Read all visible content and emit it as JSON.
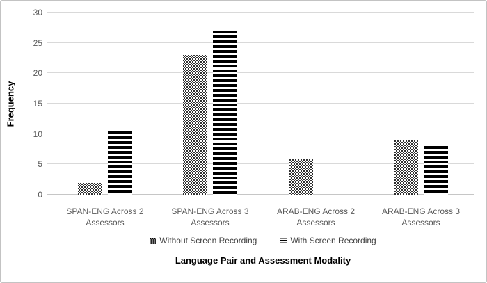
{
  "window": {
    "background": "#ffffff",
    "border_color": "#c3c3c3"
  },
  "chart_data": {
    "type": "bar",
    "title": "",
    "xlabel": "Language Pair and Assessment Modality",
    "ylabel": "Frequency",
    "ylim": [
      0,
      30
    ],
    "ytick_step": 5,
    "yticks": [
      0,
      5,
      10,
      15,
      20,
      25,
      30
    ],
    "grid": true,
    "legend_position": "bottom",
    "categories": [
      "SPAN-ENG Across 2 Assessors",
      "SPAN-ENG Across 3 Assessors",
      "ARAB-ENG Across 2 Assessors",
      "ARAB-ENG Across 3 Assessors"
    ],
    "series": [
      {
        "name": "Without Screen Recording",
        "pattern": "dots",
        "values": [
          2,
          23,
          6,
          9
        ]
      },
      {
        "name": "With Screen Recording",
        "pattern": "horizontal-lines",
        "values": [
          10.4,
          27,
          0,
          8
        ]
      }
    ]
  },
  "colors": {
    "grid_line": "#d9d9d9",
    "axis_line": "#c6c6c6",
    "tick_label": "#595959",
    "category_label": "#595959",
    "legend_label": "#404040",
    "bar_pattern": "#000000"
  }
}
